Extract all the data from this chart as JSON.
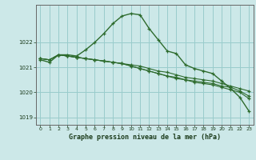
{
  "xlabel": "Graphe pression niveau de la mer (hPa)",
  "bg_color": "#cce8e8",
  "grid_color": "#99cccc",
  "line_color": "#2d6b2d",
  "ylim": [
    1018.7,
    1023.5
  ],
  "xlim": [
    -0.5,
    23.5
  ],
  "yticks": [
    1019,
    1020,
    1021,
    1022
  ],
  "xticks": [
    0,
    1,
    2,
    3,
    4,
    5,
    6,
    7,
    8,
    9,
    10,
    11,
    12,
    13,
    14,
    15,
    16,
    17,
    18,
    19,
    20,
    21,
    22,
    23
  ],
  "series": [
    [
      1021.3,
      1021.2,
      1021.5,
      1021.5,
      1021.45,
      1021.7,
      1022.0,
      1022.35,
      1022.75,
      1023.05,
      1023.15,
      1023.1,
      1022.55,
      1022.1,
      1021.65,
      1021.55,
      1021.1,
      1020.95,
      1020.85,
      1020.75,
      1020.45,
      1020.15,
      1019.8,
      1019.25
    ],
    [
      1021.35,
      1021.3,
      1021.5,
      1021.45,
      1021.4,
      1021.35,
      1021.3,
      1021.25,
      1021.2,
      1021.15,
      1021.1,
      1021.05,
      1020.95,
      1020.85,
      1020.8,
      1020.7,
      1020.6,
      1020.55,
      1020.5,
      1020.45,
      1020.35,
      1020.25,
      1020.15,
      1020.05
    ],
    [
      1021.35,
      1021.3,
      1021.5,
      1021.45,
      1021.4,
      1021.35,
      1021.3,
      1021.25,
      1021.2,
      1021.15,
      1021.05,
      1020.95,
      1020.85,
      1020.75,
      1020.65,
      1020.6,
      1020.5,
      1020.45,
      1020.4,
      1020.35,
      1020.25,
      1020.2,
      1020.05,
      1019.85
    ],
    [
      1021.35,
      1021.3,
      1021.5,
      1021.45,
      1021.4,
      1021.35,
      1021.3,
      1021.25,
      1021.2,
      1021.15,
      1021.05,
      1020.95,
      1020.85,
      1020.75,
      1020.65,
      1020.55,
      1020.5,
      1020.4,
      1020.35,
      1020.3,
      1020.2,
      1020.1,
      1020.0,
      1019.75
    ]
  ]
}
